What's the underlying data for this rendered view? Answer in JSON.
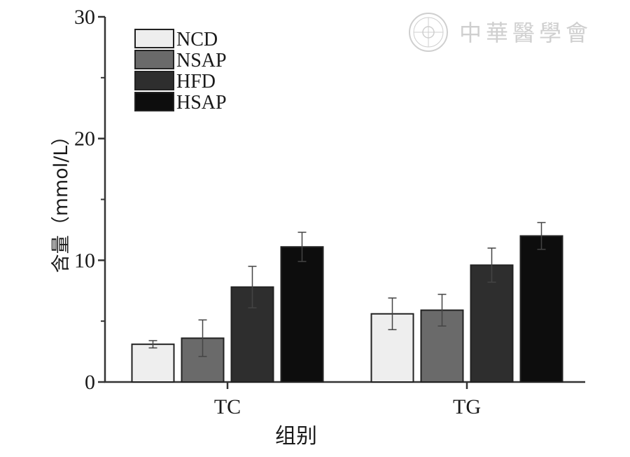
{
  "chart_data": {
    "type": "bar",
    "title": "",
    "xlabel": "组别",
    "ylabel": "含量（mmol/L）",
    "ylim": [
      0,
      30
    ],
    "yticks": [
      0,
      10,
      20,
      30
    ],
    "categories": [
      "TC",
      "TG"
    ],
    "series": [
      {
        "name": "NCD",
        "color": "#eeeeee",
        "values": [
          3.1,
          5.6
        ],
        "errors": [
          0.3,
          1.3
        ]
      },
      {
        "name": "NSAP",
        "color": "#6a6a6a",
        "values": [
          3.6,
          5.9
        ],
        "errors": [
          1.5,
          1.3
        ]
      },
      {
        "name": "HFD",
        "color": "#2e2e2e",
        "values": [
          7.8,
          9.6
        ],
        "errors": [
          1.7,
          1.4
        ]
      },
      {
        "name": "HSAP",
        "color": "#0d0d0d",
        "values": [
          11.1,
          12.0
        ],
        "errors": [
          1.2,
          1.1
        ]
      }
    ],
    "legend_position": "top-left"
  },
  "watermark": {
    "text": "中華醫學會",
    "color": "#cfcfcf"
  }
}
